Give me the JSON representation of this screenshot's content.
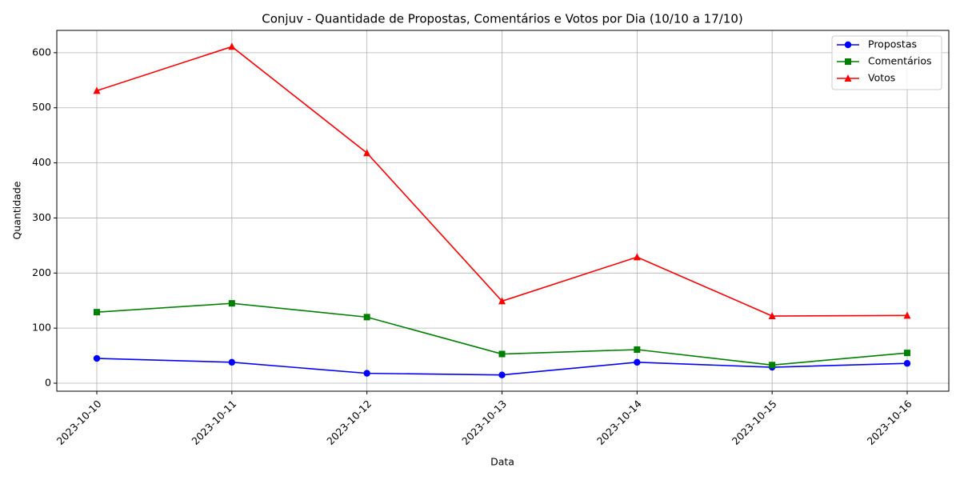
{
  "chart_data": {
    "type": "line",
    "title": "Conjuv - Quantidade de Propostas, Comentários e Votos por Dia (10/10 a 17/10)",
    "x_label": "Data",
    "y_label": "Quantidade",
    "categories": [
      "2023-10-10",
      "2023-10-11",
      "2023-10-12",
      "2023-10-13",
      "2023-10-14",
      "2023-10-15",
      "2023-10-16"
    ],
    "series": [
      {
        "name": "Propostas",
        "color": "#0000ff",
        "marker": "circle",
        "values": [
          45,
          38,
          18,
          15,
          38,
          29,
          36
        ]
      },
      {
        "name": "Comentários",
        "color": "#008000",
        "marker": "square",
        "values": [
          129,
          145,
          120,
          53,
          61,
          33,
          55
        ]
      },
      {
        "name": "Votos",
        "color": "#ff0000",
        "marker": "triangle",
        "values": [
          531,
          611,
          418,
          149,
          229,
          122,
          123
        ]
      }
    ],
    "ylim": [
      -14.5,
      640.5
    ],
    "yticks": [
      0,
      100,
      200,
      300,
      400,
      500,
      600
    ],
    "grid": true,
    "legend": "upper right"
  }
}
